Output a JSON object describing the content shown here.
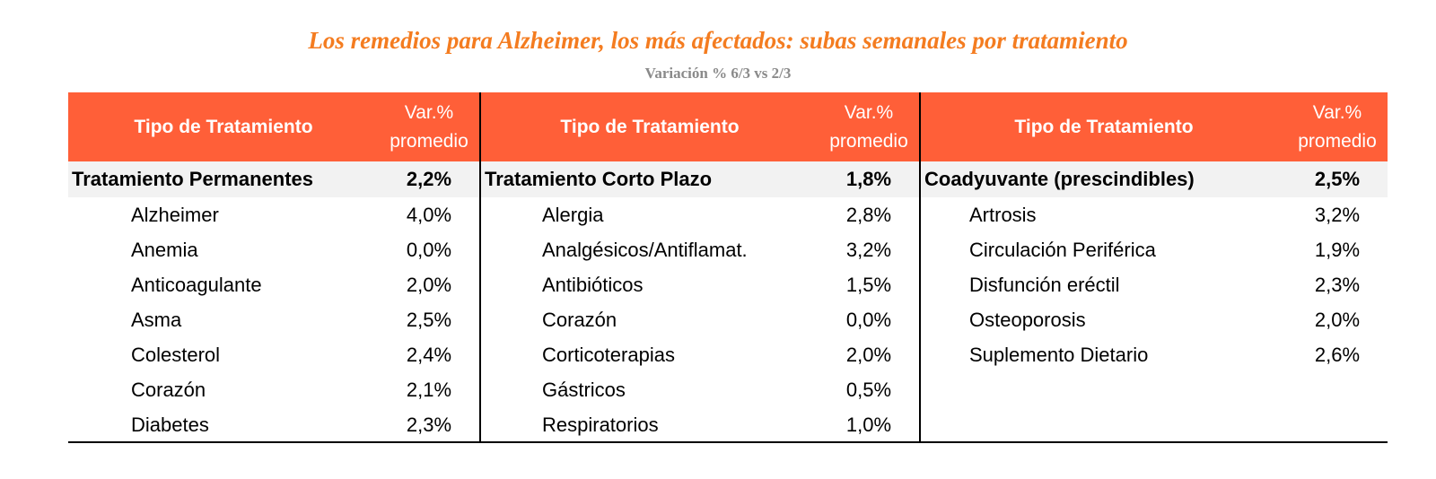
{
  "title": "Los remedios para Alzheimer, los más afectados: subas semanales por tratamiento",
  "subtitle": "Variación % 6/3 vs 2/3",
  "colors": {
    "title": "#f47c20",
    "header_bg": "#ff5f38",
    "summary_bg": "#f2f2f2"
  },
  "chart_data": {
    "type": "table",
    "title": "Los remedios para Alzheimer, los más afectados: subas semanales por tratamiento",
    "subtitle": "Variación % 6/3 vs 2/3",
    "columns": [
      "Tipo de Tratamiento",
      "Var.% promedio"
    ],
    "header_line1": "Var.%",
    "header_line2": "promedio",
    "groups": [
      {
        "name": "Tratamiento Permanentes",
        "value": "2,2%",
        "items": [
          {
            "label": "Alzheimer",
            "value": "4,0%"
          },
          {
            "label": "Anemia",
            "value": "0,0%"
          },
          {
            "label": "Anticoagulante",
            "value": "2,0%"
          },
          {
            "label": "Asma",
            "value": "2,5%"
          },
          {
            "label": "Colesterol",
            "value": "2,4%"
          },
          {
            "label": "Corazón",
            "value": "2,1%"
          },
          {
            "label": "Diabetes",
            "value": "2,3%"
          }
        ]
      },
      {
        "name": "Tratamiento Corto Plazo",
        "value": "1,8%",
        "items": [
          {
            "label": "Alergia",
            "value": "2,8%"
          },
          {
            "label": "Analgésicos/Antiflamat.",
            "value": "3,2%"
          },
          {
            "label": "Antibióticos",
            "value": "1,5%"
          },
          {
            "label": "Corazón",
            "value": "0,0%"
          },
          {
            "label": "Corticoterapias",
            "value": "2,0%"
          },
          {
            "label": "Gástricos",
            "value": "0,5%"
          },
          {
            "label": "Respiratorios",
            "value": "1,0%"
          }
        ]
      },
      {
        "name": "Coadyuvante (prescindibles)",
        "value": "2,5%",
        "items": [
          {
            "label": "Artrosis",
            "value": "3,2%"
          },
          {
            "label": "Circulación Periférica",
            "value": "1,9%"
          },
          {
            "label": "Disfunción eréctil",
            "value": "2,3%"
          },
          {
            "label": "Osteoporosis",
            "value": "2,0%"
          },
          {
            "label": "Suplemento Dietario",
            "value": "2,6%"
          }
        ]
      }
    ]
  }
}
